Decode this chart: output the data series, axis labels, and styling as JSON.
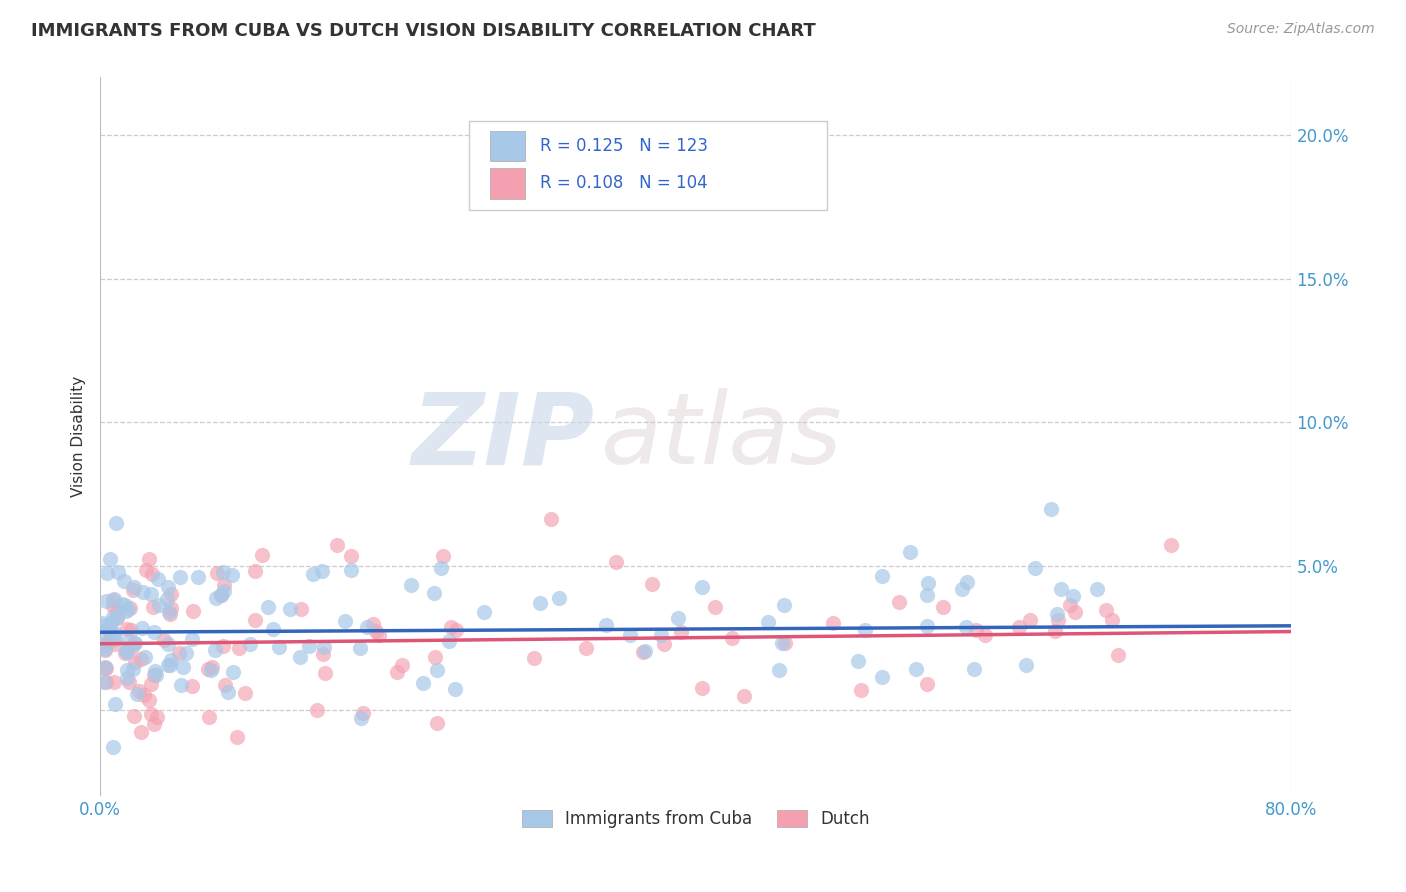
{
  "title": "IMMIGRANTS FROM CUBA VS DUTCH VISION DISABILITY CORRELATION CHART",
  "source": "Source: ZipAtlas.com",
  "ylabel": "Vision Disability",
  "xlim": [
    0.0,
    0.8
  ],
  "ylim": [
    -0.03,
    0.22
  ],
  "xticks": [
    0.0,
    0.8
  ],
  "xticklabels": [
    "0.0%",
    "80.0%"
  ],
  "yticks": [
    0.0,
    0.05,
    0.1,
    0.15,
    0.2
  ],
  "yticklabels": [
    "",
    "5.0%",
    "10.0%",
    "15.0%",
    "20.0%"
  ],
  "cuba_R": 0.125,
  "cuba_N": 123,
  "dutch_R": 0.108,
  "dutch_N": 104,
  "cuba_color": "#a8c8e8",
  "dutch_color": "#f4a0b0",
  "cuba_line_color": "#3366bb",
  "dutch_line_color": "#dd5577",
  "legend_color": "#3366cc",
  "watermark_zip": "ZIP",
  "watermark_atlas": "atlas",
  "background_color": "#ffffff",
  "title_color": "#333333",
  "axis_color": "#4499cc",
  "grid_color": "#cccccc",
  "cuba_intercept": 0.027,
  "cuba_slope": 0.0028,
  "dutch_intercept": 0.023,
  "dutch_slope": 0.0053,
  "scatter_seed_cuba": 42,
  "scatter_seed_dutch": 77
}
